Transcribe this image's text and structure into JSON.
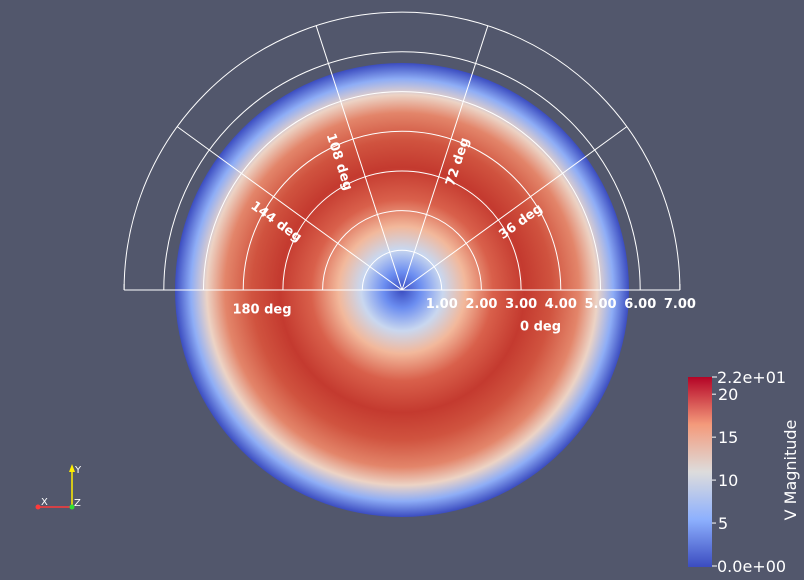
{
  "field": {
    "name": "V Magnitude",
    "range": [
      0,
      22
    ],
    "colors": {
      "low": "#3b4cc0",
      "mid": "#dddcdc",
      "high": "#b40426",
      "background": "#52576c",
      "grid": "#ffffff"
    }
  },
  "polar_grid": {
    "radial_labels": [
      "1.00",
      "2.00",
      "3.00",
      "4.00",
      "5.00",
      "6.00",
      "7.00"
    ],
    "angle_labels": [
      "0 deg",
      "36 deg",
      "72 deg",
      "108 deg",
      "144 deg",
      "180 deg"
    ],
    "angles_deg": [
      0,
      36,
      72,
      108,
      144,
      180
    ],
    "radii": [
      1,
      2,
      3,
      4,
      5,
      6,
      7
    ]
  },
  "colorbar": {
    "title": "V Magnitude",
    "max_label": "2.2e+01",
    "min_label": "0.0e+00",
    "ticks": [
      {
        "value": 20,
        "label": "20"
      },
      {
        "value": 15,
        "label": "15"
      },
      {
        "value": 10,
        "label": "10"
      },
      {
        "value": 5,
        "label": "5"
      }
    ]
  },
  "orientation_axes": {
    "x": "X",
    "y": "Y",
    "z": "Z"
  }
}
